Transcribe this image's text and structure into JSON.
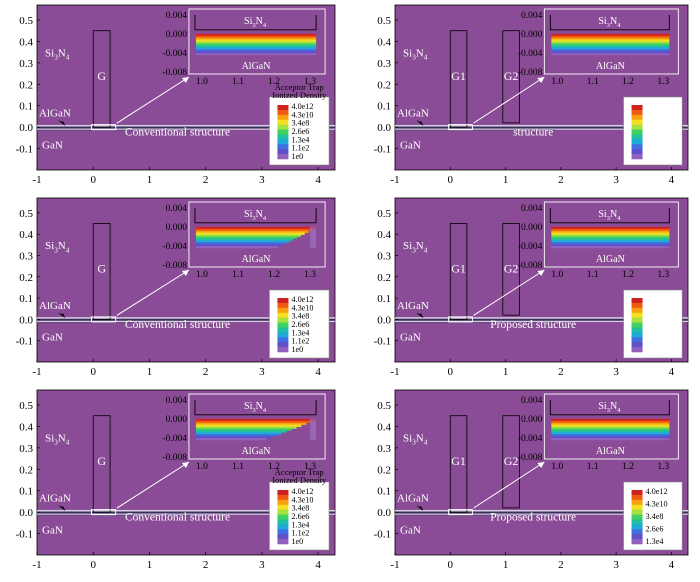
{
  "colors": {
    "background": "#8a4c96",
    "frame": "#ffffff",
    "band_dark": "#3a2f5a",
    "band_light": "#d8d0e4",
    "structure_line": "#ffffff",
    "text_light": "#ffffff",
    "text_dark": "#000000",
    "inset_fill": "#8a4c96",
    "colormap": [
      "#d02020",
      "#ee5a10",
      "#f7a010",
      "#f5e020",
      "#a8e040",
      "#40d060",
      "#20c0a0",
      "#20a8d8",
      "#4070e0",
      "#6050c8",
      "#9060c0"
    ]
  },
  "shared": {
    "main_x_ticks": [
      "-1",
      "0",
      "1",
      "2",
      "3",
      "4"
    ],
    "main_y_ticks": [
      "0.5",
      "0.4",
      "0.3",
      "0.2",
      "0.1",
      "0.0",
      "-0.1"
    ],
    "inset_x_ticks": [
      "1.0",
      "1.1",
      "1.2",
      "1.3"
    ],
    "inset_y_ticks": [
      "0.004",
      "0.000",
      "-0.004",
      "-0.008"
    ],
    "label_si3n4": "Si",
    "label_si3n4_sub": "3",
    "label_si3n4_n": "N",
    "label_si3n4_sub2": "4",
    "label_algan": "AlGaN",
    "label_gan": "GaN",
    "legend_title_1": "Acceptor Trap",
    "legend_title_2": "Ionized Density"
  },
  "panels": [
    {
      "id": "top-left",
      "gates": [
        "G"
      ],
      "structure_label": "Conventional structure",
      "legend_values": [
        "4.0e12",
        "4.3e10",
        "3.4e8",
        "2.6e6",
        "1.3e4",
        "1.1e2",
        "1e0"
      ],
      "legend_has_title": true,
      "inset_pattern": "flat"
    },
    {
      "id": "top-right",
      "gates": [
        "G1",
        "G2"
      ],
      "structure_label": "structure",
      "legend_values": [],
      "legend_has_title": false,
      "inset_pattern": "flat"
    },
    {
      "id": "middle-left",
      "gates": [
        "G"
      ],
      "structure_label": "Conventional structure",
      "legend_values": [
        "4.0e12",
        "4.3e10",
        "3.4e8",
        "2.6e6",
        "1.3e4",
        "1.1e2",
        "1e0"
      ],
      "legend_has_title": false,
      "inset_pattern": "curved"
    },
    {
      "id": "middle-right",
      "gates": [
        "G1",
        "G2"
      ],
      "structure_label": "Proposed structure",
      "legend_values": [],
      "legend_has_title": false,
      "inset_pattern": "flat"
    },
    {
      "id": "bottom-left",
      "gates": [
        "G"
      ],
      "structure_label": "Conventional structure",
      "legend_values": [
        "4.0e12",
        "4.3e10",
        "3.4e8",
        "2.6e6",
        "1.3e4",
        "1.1e2",
        "1e0"
      ],
      "legend_has_title": true,
      "inset_pattern": "strong"
    },
    {
      "id": "bottom-right",
      "gates": [
        "G1",
        "G2"
      ],
      "structure_label": "Proposed structure",
      "legend_values": [
        "4.0e12",
        "4.3e10",
        "3.4e8",
        "2.6e6",
        "1.3e4"
      ],
      "legend_has_title": false,
      "inset_pattern": "flat"
    }
  ]
}
